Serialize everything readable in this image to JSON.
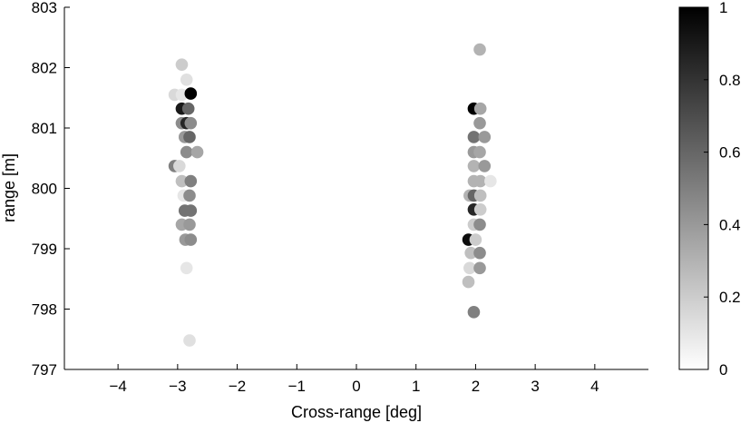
{
  "chart_data": {
    "type": "scatter",
    "xlabel": "Cross-range [deg]",
    "ylabel": "range [m]",
    "xlim": [
      -4.9,
      4.9
    ],
    "ylim": [
      797,
      803
    ],
    "xticks": [
      -4,
      -3,
      -2,
      -1,
      0,
      1,
      2,
      3,
      4
    ],
    "xtick_labels": [
      "−4",
      "−3",
      "−2",
      "−1",
      "0",
      "1",
      "2",
      "3",
      "4"
    ],
    "yticks": [
      797,
      798,
      799,
      800,
      801,
      802,
      803
    ],
    "ytick_labels": [
      "797",
      "798",
      "799",
      "800",
      "801",
      "802",
      "803"
    ],
    "grid": false,
    "legend": "none",
    "color_encoding": "grayscale intensity (0 = white, 1 = black)",
    "colorbar": {
      "range": [
        0,
        1
      ],
      "ticks": [
        0,
        0.2,
        0.4,
        0.6,
        0.8,
        1
      ],
      "tick_labels": [
        "0",
        "0.2",
        "0.4",
        "0.6",
        "0.8",
        "1"
      ],
      "colors": [
        "#ffffff",
        "#000000"
      ]
    },
    "points": [
      {
        "x": -2.93,
        "y": 802.05,
        "c": 0.2
      },
      {
        "x": -2.85,
        "y": 801.8,
        "c": 0.12
      },
      {
        "x": -3.05,
        "y": 801.55,
        "c": 0.15
      },
      {
        "x": -2.93,
        "y": 801.55,
        "c": 0.1
      },
      {
        "x": -2.78,
        "y": 801.57,
        "c": 1.0
      },
      {
        "x": -2.93,
        "y": 801.32,
        "c": 0.9
      },
      {
        "x": -2.82,
        "y": 801.32,
        "c": 0.6
      },
      {
        "x": -2.93,
        "y": 801.08,
        "c": 0.45
      },
      {
        "x": -2.85,
        "y": 801.08,
        "c": 0.85
      },
      {
        "x": -2.78,
        "y": 801.08,
        "c": 0.45
      },
      {
        "x": -2.88,
        "y": 800.85,
        "c": 0.4
      },
      {
        "x": -2.8,
        "y": 800.85,
        "c": 0.6
      },
      {
        "x": -2.85,
        "y": 800.6,
        "c": 0.45
      },
      {
        "x": -2.67,
        "y": 800.6,
        "c": 0.35
      },
      {
        "x": -3.05,
        "y": 800.37,
        "c": 0.5
      },
      {
        "x": -2.97,
        "y": 800.37,
        "c": 0.15
      },
      {
        "x": -2.93,
        "y": 800.12,
        "c": 0.25
      },
      {
        "x": -2.78,
        "y": 800.12,
        "c": 0.5
      },
      {
        "x": -2.9,
        "y": 799.88,
        "c": 0.1
      },
      {
        "x": -2.8,
        "y": 799.88,
        "c": 0.45
      },
      {
        "x": -2.88,
        "y": 799.63,
        "c": 0.55
      },
      {
        "x": -2.78,
        "y": 799.63,
        "c": 0.55
      },
      {
        "x": -2.93,
        "y": 799.4,
        "c": 0.35
      },
      {
        "x": -2.8,
        "y": 799.4,
        "c": 0.4
      },
      {
        "x": -2.87,
        "y": 799.15,
        "c": 0.4
      },
      {
        "x": -2.78,
        "y": 799.15,
        "c": 0.45
      },
      {
        "x": -2.85,
        "y": 798.68,
        "c": 0.1
      },
      {
        "x": -2.8,
        "y": 797.48,
        "c": 0.12
      },
      {
        "x": 2.07,
        "y": 802.3,
        "c": 0.3
      },
      {
        "x": 1.97,
        "y": 801.32,
        "c": 1.0
      },
      {
        "x": 2.08,
        "y": 801.32,
        "c": 0.35
      },
      {
        "x": 2.07,
        "y": 801.08,
        "c": 0.4
      },
      {
        "x": 1.97,
        "y": 800.85,
        "c": 0.55
      },
      {
        "x": 2.15,
        "y": 800.85,
        "c": 0.4
      },
      {
        "x": 1.97,
        "y": 800.6,
        "c": 0.4
      },
      {
        "x": 2.07,
        "y": 800.6,
        "c": 0.35
      },
      {
        "x": 1.97,
        "y": 800.37,
        "c": 0.3
      },
      {
        "x": 2.15,
        "y": 800.37,
        "c": 0.4
      },
      {
        "x": 1.97,
        "y": 800.12,
        "c": 0.3
      },
      {
        "x": 2.08,
        "y": 800.12,
        "c": 0.3
      },
      {
        "x": 2.25,
        "y": 800.12,
        "c": 0.1
      },
      {
        "x": 1.9,
        "y": 799.88,
        "c": 0.3
      },
      {
        "x": 1.97,
        "y": 799.88,
        "c": 0.6
      },
      {
        "x": 2.08,
        "y": 799.88,
        "c": 0.25
      },
      {
        "x": 1.97,
        "y": 799.65,
        "c": 0.85
      },
      {
        "x": 2.08,
        "y": 799.65,
        "c": 0.2
      },
      {
        "x": 1.97,
        "y": 799.4,
        "c": 0.2
      },
      {
        "x": 2.07,
        "y": 799.4,
        "c": 0.45
      },
      {
        "x": 1.88,
        "y": 799.15,
        "c": 0.95
      },
      {
        "x": 2.0,
        "y": 799.15,
        "c": 0.2
      },
      {
        "x": 1.92,
        "y": 798.93,
        "c": 0.25
      },
      {
        "x": 2.07,
        "y": 798.93,
        "c": 0.45
      },
      {
        "x": 1.9,
        "y": 798.68,
        "c": 0.15
      },
      {
        "x": 2.07,
        "y": 798.68,
        "c": 0.4
      },
      {
        "x": 1.88,
        "y": 798.45,
        "c": 0.25
      },
      {
        "x": 1.97,
        "y": 797.95,
        "c": 0.5
      }
    ]
  }
}
